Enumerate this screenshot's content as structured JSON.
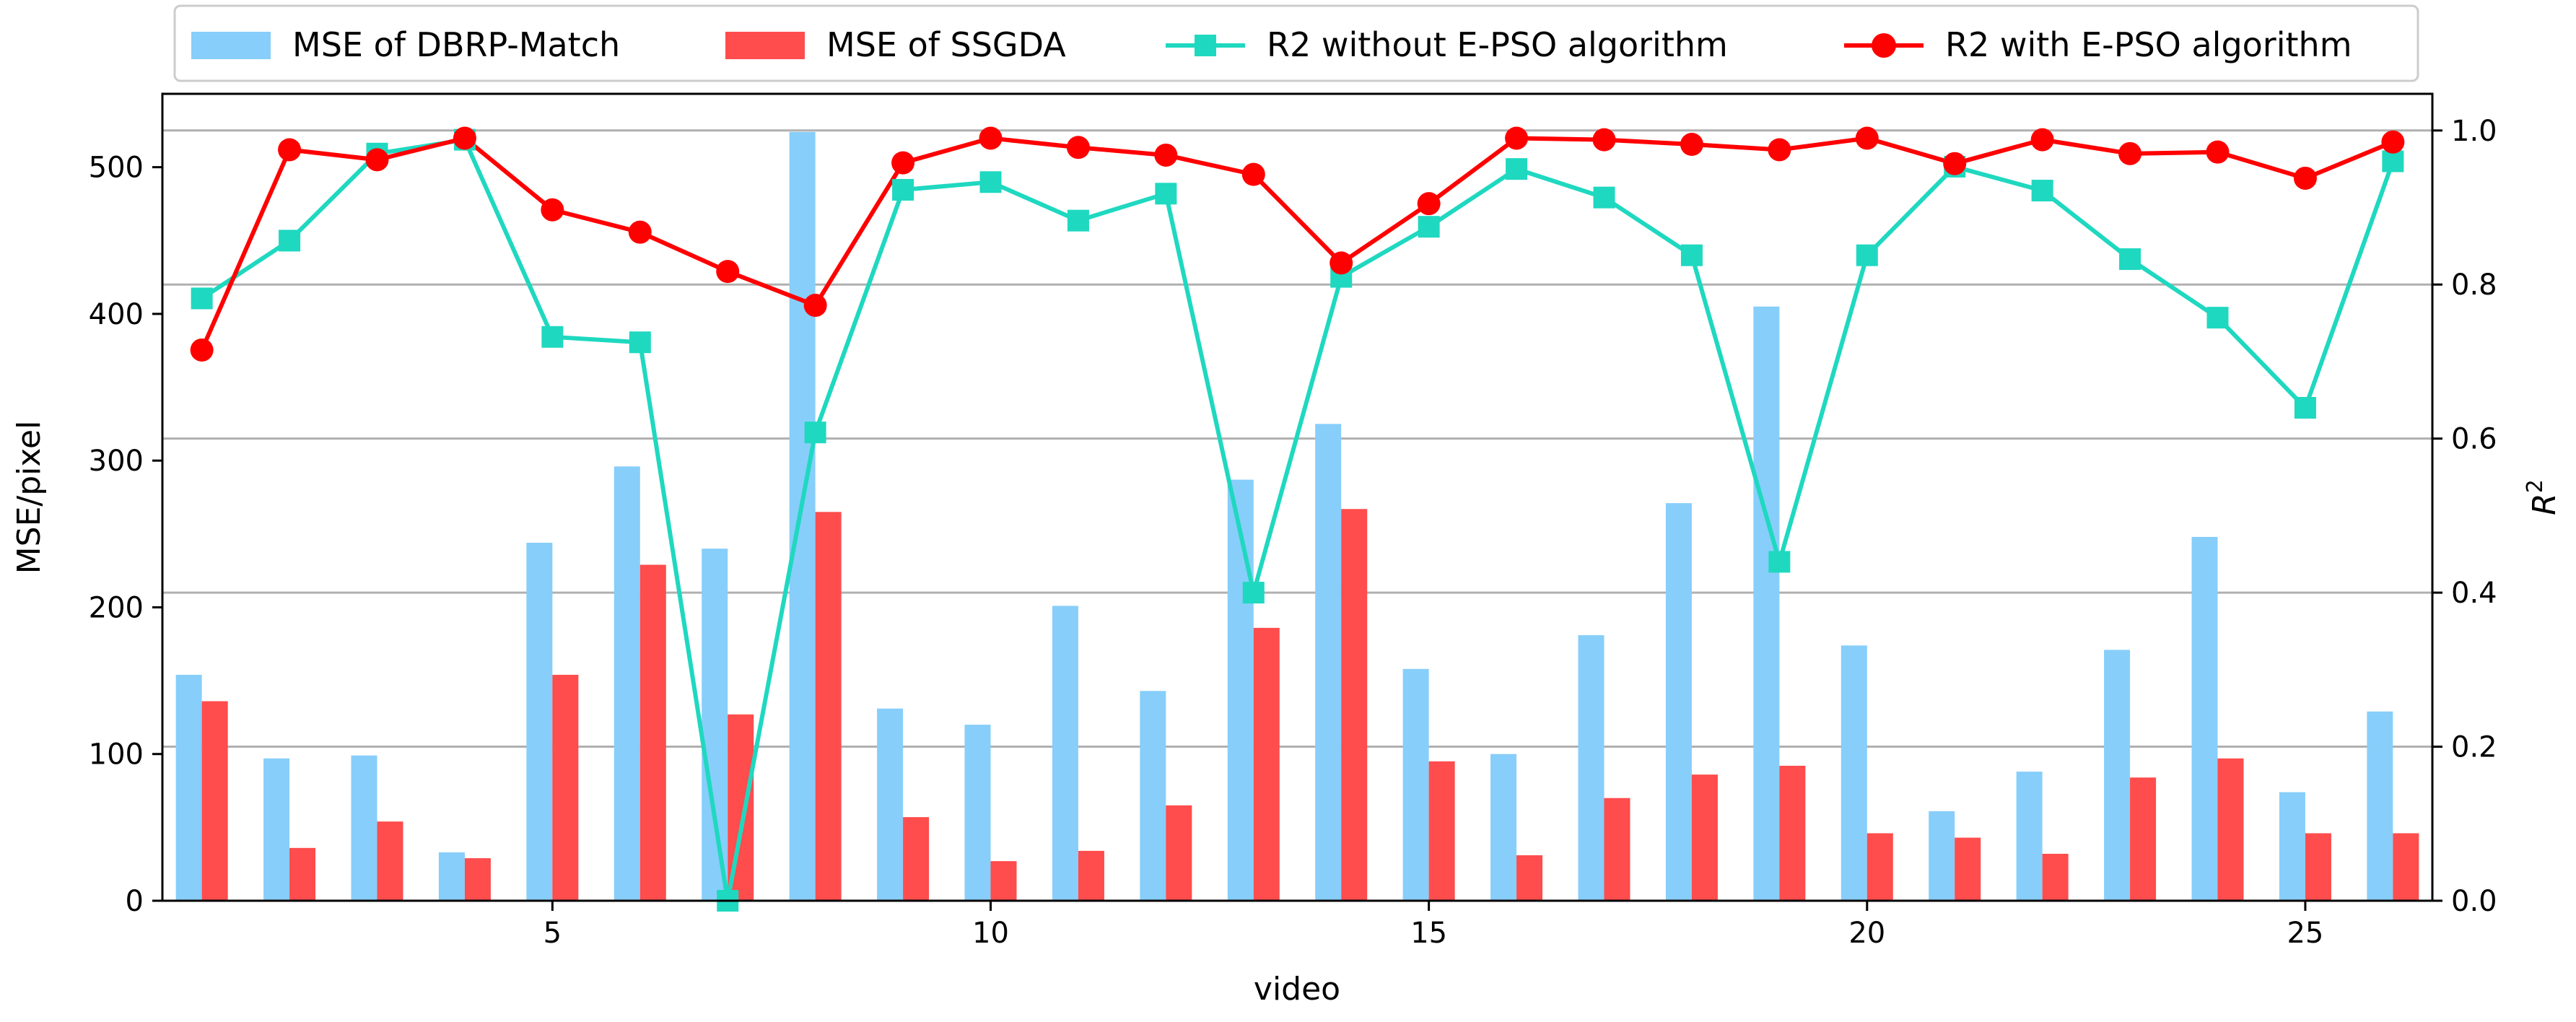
{
  "chart_data": {
    "type": "bar+line",
    "xlabel": "video",
    "ylabel_left": "MSE/pixel",
    "ylabel_right": "R",
    "ylabel_right_superscript": "2",
    "x": [
      1,
      2,
      3,
      4,
      5,
      6,
      7,
      8,
      9,
      10,
      11,
      12,
      13,
      14,
      15,
      16,
      17,
      18,
      19,
      20,
      21,
      22,
      23,
      24,
      25,
      26
    ],
    "x_ticks": [
      5,
      10,
      15,
      20,
      25
    ],
    "x_tick_labels": [
      "5",
      "10",
      "15",
      "20",
      "25"
    ],
    "xlim": [
      0.55,
      26.45
    ],
    "left_ylim": [
      0,
      550
    ],
    "left_ticks": [
      0,
      100,
      200,
      300,
      400,
      500
    ],
    "left_tick_labels": [
      "0",
      "100",
      "200",
      "300",
      "400",
      "500"
    ],
    "right_ylim": [
      0,
      1.0476
    ],
    "right_ticks": [
      0,
      0.2,
      0.4,
      0.6,
      0.8,
      1.0
    ],
    "right_tick_labels": [
      "0.0",
      "0.2",
      "0.4",
      "0.6",
      "0.8",
      "1.0"
    ],
    "grid": "horizontal, right axis",
    "legend_position": "top-center, outside",
    "bar_series": [
      {
        "name": "MSE of DBRP-Match",
        "color": "#87CEFA",
        "values": [
          154,
          97,
          99,
          33,
          244,
          296,
          240,
          524,
          131,
          120,
          201,
          143,
          287,
          325,
          158,
          100,
          181,
          271,
          405,
          174,
          61,
          88,
          171,
          248,
          74,
          129
        ]
      },
      {
        "name": "MSE of SSGDA",
        "color": "#FF4C4C",
        "values": [
          136,
          36,
          54,
          29,
          154,
          229,
          127,
          265,
          57,
          27,
          34,
          65,
          186,
          267,
          95,
          31,
          70,
          86,
          92,
          46,
          43,
          32,
          84,
          97,
          46,
          46
        ]
      }
    ],
    "line_series": [
      {
        "name": "R2 without E-PSO algorithm",
        "color": "#1FD8C0",
        "marker": "square",
        "values": [
          0.782,
          0.857,
          0.97,
          0.988,
          0.732,
          0.725,
          0.0,
          0.608,
          0.923,
          0.933,
          0.883,
          0.918,
          0.4,
          0.81,
          0.875,
          0.95,
          0.913,
          0.838,
          0.44,
          0.838,
          0.953,
          0.922,
          0.833,
          0.757,
          0.64,
          0.96
        ]
      },
      {
        "name": "R2 with E-PSO algorithm",
        "color": "#FF0000",
        "marker": "circle",
        "values": [
          0.715,
          0.975,
          0.962,
          0.99,
          0.897,
          0.868,
          0.817,
          0.773,
          0.958,
          0.99,
          0.978,
          0.968,
          0.943,
          0.828,
          0.905,
          0.99,
          0.988,
          0.982,
          0.975,
          0.99,
          0.957,
          0.988,
          0.97,
          0.972,
          0.938,
          0.985
        ]
      }
    ],
    "legend": [
      "MSE of DBRP-Match",
      "MSE of SSGDA",
      "R2 without E-PSO algorithm",
      "R2 with E-PSO algorithm"
    ]
  }
}
